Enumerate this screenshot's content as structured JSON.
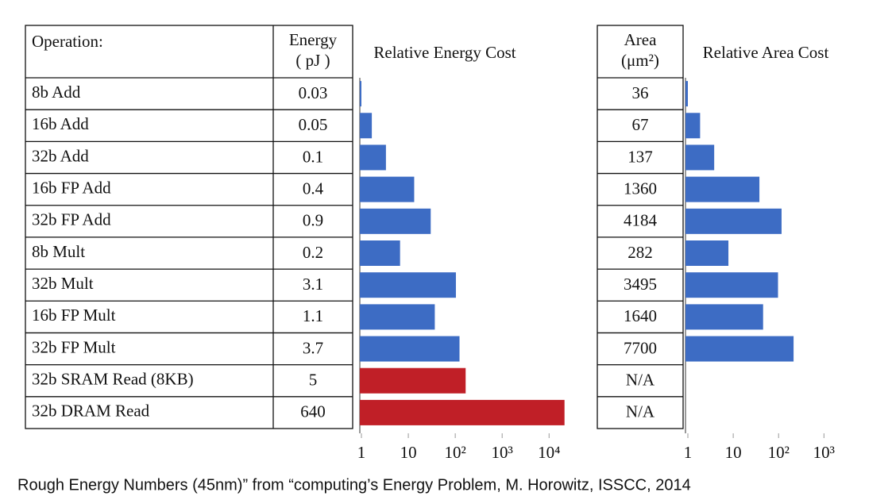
{
  "chart_data": [
    {
      "type": "bar",
      "orientation": "horizontal",
      "title": "Relative Energy Cost",
      "category_header": "Operation:",
      "value_header": [
        "Energy",
        "( pJ )"
      ],
      "categories": [
        "8b Add",
        "16b Add",
        "32b Add",
        "16b FP Add",
        "32b FP Add",
        "8b Mult",
        "32b Mult",
        "16b FP Mult",
        "32b FP Mult",
        "32b SRAM Read (8KB)",
        "32b DRAM Read"
      ],
      "values": [
        0.03,
        0.05,
        0.1,
        0.4,
        0.9,
        0.2,
        3.1,
        1.1,
        3.7,
        5,
        640
      ],
      "colors": [
        "#3d6cc4",
        "#3d6cc4",
        "#3d6cc4",
        "#3d6cc4",
        "#3d6cc4",
        "#3d6cc4",
        "#3d6cc4",
        "#3d6cc4",
        "#3d6cc4",
        "#c01f27",
        "#c01f27"
      ],
      "log_scale": true,
      "xlim": [
        0.03,
        700
      ],
      "xticks": [
        {
          "value": 0.03,
          "label": "1"
        },
        {
          "value": 0.3,
          "label": "10"
        },
        {
          "value": 3,
          "label": "10²"
        },
        {
          "value": 30,
          "label": "10³"
        },
        {
          "value": 300,
          "label": "10⁴"
        }
      ]
    },
    {
      "type": "bar",
      "orientation": "horizontal",
      "title": "Relative Area Cost",
      "value_header": [
        "Area",
        "(μm²)"
      ],
      "values": [
        36,
        67,
        137,
        1360,
        4184,
        282,
        3495,
        1640,
        7700,
        null,
        null
      ],
      "value_labels": [
        "36",
        "67",
        "137",
        "1360",
        "4184",
        "282",
        "3495",
        "1640",
        "7700",
        "N/A",
        "N/A"
      ],
      "color": "#3d6cc4",
      "log_scale": true,
      "xlim": [
        36,
        60000
      ],
      "xticks": [
        {
          "value": 36,
          "label": "1"
        },
        {
          "value": 360,
          "label": "10"
        },
        {
          "value": 3600,
          "label": "10²"
        },
        {
          "value": 36000,
          "label": "10³"
        }
      ]
    }
  ],
  "caption": "Rough Energy Numbers (45nm)” from “computing’s Energy Problem, M. Horowitz, ISSCC, 2014"
}
